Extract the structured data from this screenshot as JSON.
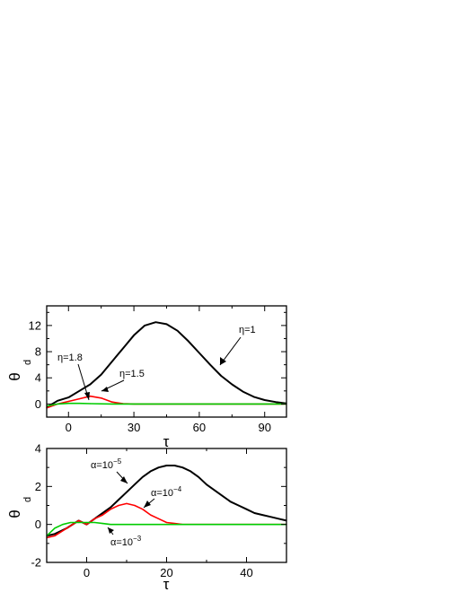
{
  "chart_data": [
    {
      "type": "line",
      "xlabel": "τ",
      "ylabel": "θ",
      "ylabel_subscript": "d",
      "xlim": [
        -10,
        100
      ],
      "ylim": [
        -2,
        15
      ],
      "xticks": [
        0,
        30,
        60,
        90
      ],
      "yticks": [
        0,
        4,
        8,
        12
      ],
      "grid": false,
      "series": [
        {
          "name": "η=1",
          "color": "#000000",
          "x": [
            -10,
            -5,
            0,
            5,
            10,
            15,
            20,
            25,
            30,
            35,
            40,
            45,
            50,
            55,
            60,
            65,
            70,
            75,
            80,
            85,
            90,
            95,
            100
          ],
          "y": [
            -0.5,
            0.5,
            1.0,
            2.0,
            3.0,
            4.5,
            6.5,
            8.5,
            10.5,
            12.0,
            12.5,
            12.2,
            11.2,
            9.6,
            7.8,
            6.0,
            4.3,
            3.0,
            1.9,
            1.1,
            0.6,
            0.3,
            0.1
          ]
        },
        {
          "name": "η=1.5",
          "color": "#ff0000",
          "x": [
            -10,
            -5,
            0,
            5,
            10,
            15,
            20,
            25,
            30,
            100
          ],
          "y": [
            -0.6,
            0.0,
            0.4,
            0.8,
            1.2,
            0.9,
            0.3,
            0.05,
            0.0,
            0.0
          ]
        },
        {
          "name": "η=1.8",
          "color": "#00cc00",
          "x": [
            -10,
            -5,
            0,
            5,
            10,
            20,
            100
          ],
          "y": [
            -0.3,
            0.0,
            0.1,
            0.1,
            0.05,
            0.0,
            0.0
          ]
        }
      ],
      "annotations": [
        "η=1",
        "η=1.5",
        "η=1.8"
      ]
    },
    {
      "type": "line",
      "xlabel": "τ",
      "ylabel": "θ",
      "ylabel_subscript": "d",
      "xlim": [
        -10,
        50
      ],
      "ylim": [
        -2,
        4
      ],
      "xticks": [
        0,
        20,
        40
      ],
      "yticks": [
        -2,
        0,
        2,
        4
      ],
      "grid": false,
      "series": [
        {
          "name": "α=10^-5",
          "color": "#000000",
          "x": [
            -10,
            -8,
            -5,
            -2,
            0,
            2,
            4,
            6,
            8,
            10,
            12,
            14,
            16,
            18,
            20,
            22,
            24,
            26,
            28,
            30,
            32,
            34,
            36,
            38,
            40,
            42,
            44,
            46,
            48,
            50
          ],
          "y": [
            -0.6,
            -0.5,
            -0.2,
            0.2,
            0.0,
            0.3,
            0.6,
            0.9,
            1.3,
            1.7,
            2.1,
            2.5,
            2.8,
            3.0,
            3.1,
            3.1,
            3.0,
            2.8,
            2.5,
            2.1,
            1.8,
            1.5,
            1.2,
            1.0,
            0.8,
            0.6,
            0.5,
            0.4,
            0.3,
            0.2
          ]
        },
        {
          "name": "α=10^-4",
          "color": "#ff0000",
          "x": [
            -10,
            -8,
            -5,
            -2,
            0,
            2,
            4,
            6,
            8,
            10,
            12,
            14,
            16,
            18,
            20,
            22,
            24,
            26,
            30,
            50
          ],
          "y": [
            -0.7,
            -0.6,
            -0.2,
            0.2,
            0.0,
            0.3,
            0.5,
            0.8,
            1.0,
            1.1,
            1.0,
            0.8,
            0.5,
            0.3,
            0.1,
            0.05,
            0.0,
            0.0,
            0.0,
            0.0
          ]
        },
        {
          "name": "α=10^-3",
          "color": "#00cc00",
          "x": [
            -10,
            -8,
            -6,
            -4,
            -2,
            0,
            2,
            4,
            6,
            8,
            10,
            50
          ],
          "y": [
            -0.6,
            -0.2,
            0.0,
            0.1,
            0.1,
            0.1,
            0.1,
            0.05,
            0.0,
            0.0,
            0.0,
            0.0
          ]
        }
      ],
      "annotations": [
        "α=10",
        "−5",
        "α=10",
        "−4",
        "α=10",
        "−3"
      ]
    }
  ]
}
